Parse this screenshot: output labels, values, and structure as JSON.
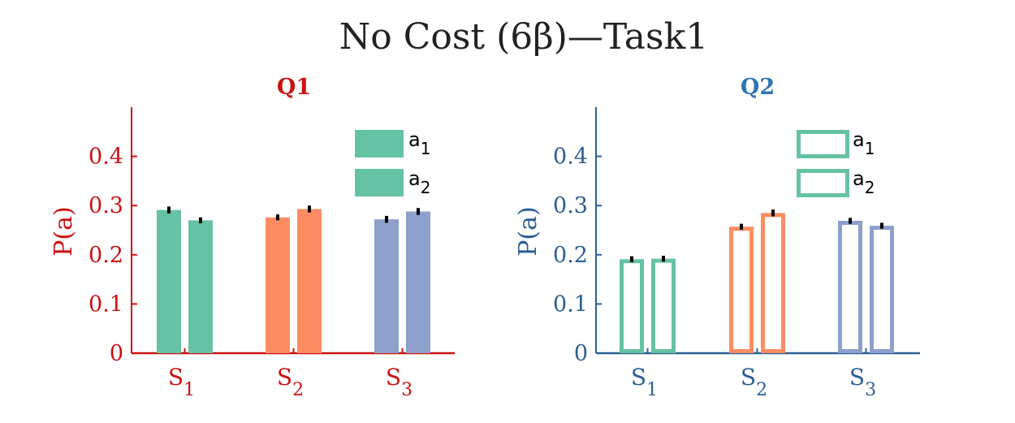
{
  "figure": {
    "title": "No Cost (6β)—Task1"
  },
  "chart_data": [
    {
      "type": "bar",
      "panel": "Q1",
      "title": "Q1",
      "title_color": "#cc1111",
      "axis_color": "#cc1111",
      "bar_style": "filled",
      "ylabel": "P(a)",
      "ylim": [
        0,
        0.5
      ],
      "yticks": [
        0,
        0.1,
        0.2,
        0.3,
        0.4
      ],
      "ytick_labels": [
        "0",
        "0.1",
        "0.2",
        "0.3",
        "0.4"
      ],
      "categories": [
        "S1",
        "S2",
        "S3"
      ],
      "category_labels": [
        {
          "base": "S",
          "sub": "1"
        },
        {
          "base": "S",
          "sub": "2"
        },
        {
          "base": "S",
          "sub": "3"
        }
      ],
      "category_colors": [
        "#66c2a5",
        "#fc8d62",
        "#8da0cb"
      ],
      "series": [
        {
          "name": "a1",
          "legend_base": "a",
          "legend_sub": "1",
          "values": [
            0.291,
            0.276,
            0.272
          ],
          "errors": [
            0.007,
            0.006,
            0.007
          ]
        },
        {
          "name": "a2",
          "legend_base": "a",
          "legend_sub": "2",
          "values": [
            0.27,
            0.293,
            0.288
          ],
          "errors": [
            0.006,
            0.007,
            0.007
          ]
        }
      ],
      "legend": {
        "placement": "top-right",
        "color": "#66c2a5"
      }
    },
    {
      "type": "bar",
      "panel": "Q2",
      "title": "Q2",
      "title_color": "#2f74b5",
      "axis_color": "#2a5f93",
      "bar_style": "outline",
      "ylabel": "P(a)",
      "ylim": [
        0,
        0.5
      ],
      "yticks": [
        0,
        0.1,
        0.2,
        0.3,
        0.4
      ],
      "ytick_labels": [
        "0",
        "0.1",
        "0.2",
        "0.3",
        "0.4"
      ],
      "categories": [
        "S1",
        "S2",
        "S3"
      ],
      "category_labels": [
        {
          "base": "S",
          "sub": "1"
        },
        {
          "base": "S",
          "sub": "2"
        },
        {
          "base": "S",
          "sub": "3"
        }
      ],
      "category_colors": [
        "#66c2a5",
        "#fc8d62",
        "#8da0cb"
      ],
      "series": [
        {
          "name": "a1",
          "legend_base": "a",
          "legend_sub": "1",
          "values": [
            0.191,
            0.257,
            0.269
          ],
          "errors": [
            0.006,
            0.006,
            0.006
          ]
        },
        {
          "name": "a2",
          "legend_base": "a",
          "legend_sub": "2",
          "values": [
            0.192,
            0.285,
            0.259
          ],
          "errors": [
            0.006,
            0.007,
            0.006
          ]
        }
      ],
      "legend": {
        "placement": "top-right",
        "color": "#66c2a5"
      }
    }
  ]
}
